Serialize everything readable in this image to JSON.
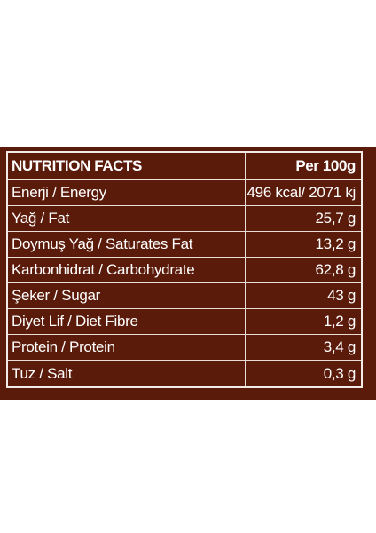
{
  "nutrition_table": {
    "header": {
      "title": "NUTRITION FACTS",
      "per": "Per 100g"
    },
    "rows": [
      {
        "label": "Enerji / Energy",
        "value": "496 kcal/ 2071 kj"
      },
      {
        "label": "Yağ / Fat",
        "value": "25,7 g"
      },
      {
        "label": "Doymuş Yağ / Saturates Fat",
        "value": "13,2 g"
      },
      {
        "label": "Karbonhidrat / Carbohydrate",
        "value": "62,8 g"
      },
      {
        "label": "Şeker / Sugar",
        "value": "43 g"
      },
      {
        "label": "Diyet Lif / Diet Fibre",
        "value": "1,2 g"
      },
      {
        "label": "Protein / Protein",
        "value": "3,4 g"
      },
      {
        "label": "Tuz / Salt",
        "value": "0,3 g"
      }
    ]
  },
  "colors": {
    "panel_background": "#5b1b0b",
    "text": "#ffffff",
    "border": "#f2eae4",
    "page_background": "#ffffff"
  }
}
